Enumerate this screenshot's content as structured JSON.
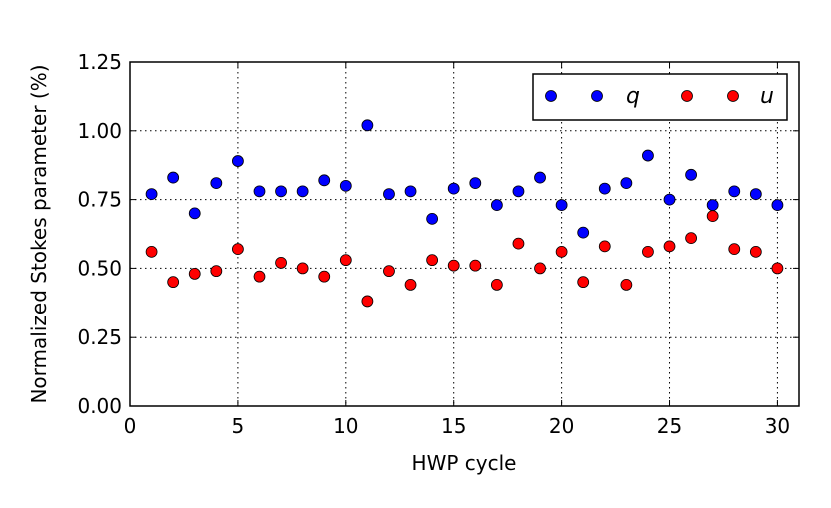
{
  "chart_data": {
    "type": "scatter",
    "xlabel": "HWP cycle",
    "ylabel": "Normalized Stokes parameter (%)",
    "xlim": [
      0,
      31
    ],
    "ylim": [
      0,
      1.25
    ],
    "x_ticks": [
      0,
      5,
      10,
      15,
      20,
      25,
      30
    ],
    "x_tick_labels": [
      "0",
      "5",
      "10",
      "15",
      "20",
      "25",
      "30"
    ],
    "y_ticks": [
      0,
      0.25,
      0.5,
      0.75,
      1.0,
      1.25
    ],
    "y_tick_labels": [
      "0.00",
      "0.25",
      "0.50",
      "0.75",
      "1.00",
      "1.25"
    ],
    "grid": true,
    "legend_position": "top-right",
    "x": [
      1,
      2,
      3,
      4,
      5,
      6,
      7,
      8,
      9,
      10,
      11,
      12,
      13,
      14,
      15,
      16,
      17,
      18,
      19,
      20,
      21,
      22,
      23,
      24,
      25,
      26,
      27,
      28,
      29,
      30
    ],
    "series": [
      {
        "name": "q",
        "color": "#0000ff",
        "values": [
          0.77,
          0.83,
          0.7,
          0.81,
          0.89,
          0.78,
          0.78,
          0.78,
          0.82,
          0.8,
          1.02,
          0.77,
          0.78,
          0.68,
          0.79,
          0.81,
          0.73,
          0.78,
          0.83,
          0.73,
          0.63,
          0.79,
          0.81,
          0.91,
          0.75,
          0.84,
          0.73,
          0.78,
          0.77,
          0.73
        ]
      },
      {
        "name": "u",
        "color": "#ff0000",
        "values": [
          0.56,
          0.45,
          0.48,
          0.49,
          0.57,
          0.47,
          0.52,
          0.5,
          0.47,
          0.53,
          0.38,
          0.49,
          0.44,
          0.53,
          0.51,
          0.51,
          0.44,
          0.59,
          0.5,
          0.56,
          0.45,
          0.58,
          0.44,
          0.56,
          0.58,
          0.61,
          0.69,
          0.57,
          0.56,
          0.5
        ]
      }
    ]
  }
}
